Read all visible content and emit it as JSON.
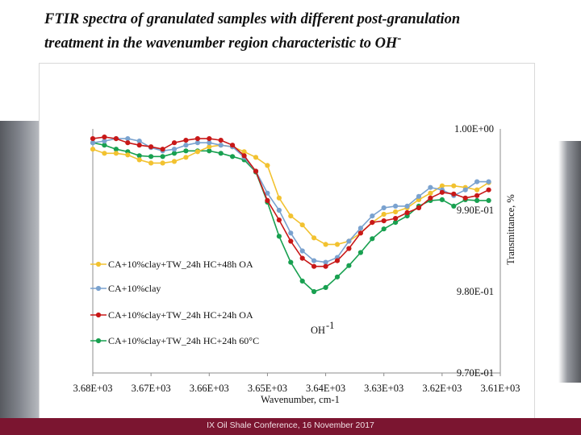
{
  "slide": {
    "title_line1": "FTIR spectra of granulated samples with different post-granulation",
    "title_line2": "treatment in the wavenumber region characteristic to OH",
    "title_sup": "-",
    "footer": "IX Oil Shale Conference, 16 November 2017"
  },
  "chart_data": {
    "type": "line",
    "title": "",
    "xlabel": "Wavenumber, cm-1",
    "ylabel": "Transmittance, %",
    "x_ticks": [
      "3.68E+03",
      "3.67E+03",
      "3.66E+03",
      "3.65E+03",
      "3.64E+03",
      "3.63E+03",
      "3.62E+03",
      "3.61E+03"
    ],
    "x_tick_values": [
      3680,
      3670,
      3660,
      3650,
      3640,
      3630,
      3620,
      3610
    ],
    "xlim": [
      3680,
      3610
    ],
    "y_ticks": [
      "1.00E+00",
      "9.90E-01",
      "9.80E-01",
      "9.70E-01"
    ],
    "y_tick_values": [
      1.0,
      0.99,
      0.98,
      0.97
    ],
    "ylim": [
      0.97,
      1.0
    ],
    "annotation": "OH",
    "annotation_sup": "-1",
    "legend_position": "left",
    "x": [
      3680.0,
      3678.0,
      3676.0,
      3674.0,
      3672.0,
      3670.0,
      3668.0,
      3666.0,
      3664.0,
      3662.0,
      3660.0,
      3658.0,
      3656.0,
      3654.0,
      3652.0,
      3650.0,
      3648.0,
      3646.0,
      3644.0,
      3642.0,
      3640.0,
      3638.0,
      3636.0,
      3634.0,
      3632.0,
      3630.0,
      3628.0,
      3626.0,
      3624.0,
      3622.0,
      3620.0,
      3618.0,
      3616.0,
      3614.0,
      3612.0
    ],
    "series": [
      {
        "name": "CA+10%clay+TW_24h HC+48h OA",
        "color": "#f2c230",
        "values": [
          0.9975,
          0.997,
          0.997,
          0.9968,
          0.9962,
          0.9958,
          0.9958,
          0.996,
          0.9965,
          0.9972,
          0.9978,
          0.998,
          0.9978,
          0.9972,
          0.9965,
          0.9955,
          0.9915,
          0.9893,
          0.9882,
          0.9866,
          0.9858,
          0.9858,
          0.9862,
          0.9872,
          0.9885,
          0.9895,
          0.9898,
          0.9903,
          0.9913,
          0.9921,
          0.993,
          0.993,
          0.9928,
          0.9925,
          0.9934
        ]
      },
      {
        "name": "CA+10%clay",
        "color": "#7aa2cf",
        "values": [
          0.9983,
          0.9985,
          0.9988,
          0.9988,
          0.9985,
          0.9977,
          0.9973,
          0.9975,
          0.998,
          0.9983,
          0.9983,
          0.998,
          0.9978,
          0.9965,
          0.9948,
          0.9921,
          0.99,
          0.9872,
          0.985,
          0.9838,
          0.9836,
          0.9842,
          0.9862,
          0.9878,
          0.9893,
          0.9903,
          0.9905,
          0.9905,
          0.9917,
          0.9928,
          0.9925,
          0.9918,
          0.9925,
          0.9935,
          0.9935
        ]
      },
      {
        "name": "CA+10%clay+TW_24h HC+24h OA",
        "color": "#c81818",
        "values": [
          0.9988,
          0.999,
          0.9988,
          0.9983,
          0.998,
          0.9978,
          0.9975,
          0.9983,
          0.9986,
          0.9988,
          0.9988,
          0.9986,
          0.998,
          0.9967,
          0.9948,
          0.9912,
          0.9888,
          0.9862,
          0.9841,
          0.9831,
          0.9831,
          0.9838,
          0.9853,
          0.9872,
          0.9885,
          0.9887,
          0.989,
          0.9897,
          0.9903,
          0.9915,
          0.9922,
          0.992,
          0.9915,
          0.9918,
          0.9925
        ]
      },
      {
        "name": "CA+10%clay+TW_24h HC+24h 60°C",
        "color": "#18a050",
        "values": [
          0.9983,
          0.998,
          0.9975,
          0.9972,
          0.9967,
          0.9966,
          0.9966,
          0.997,
          0.9973,
          0.9973,
          0.9973,
          0.997,
          0.9966,
          0.9962,
          0.9947,
          0.991,
          0.9868,
          0.9836,
          0.9813,
          0.98,
          0.9805,
          0.9818,
          0.9832,
          0.9848,
          0.9865,
          0.9877,
          0.9885,
          0.9893,
          0.9905,
          0.9912,
          0.9913,
          0.9905,
          0.9913,
          0.9912,
          0.9912
        ]
      }
    ]
  }
}
